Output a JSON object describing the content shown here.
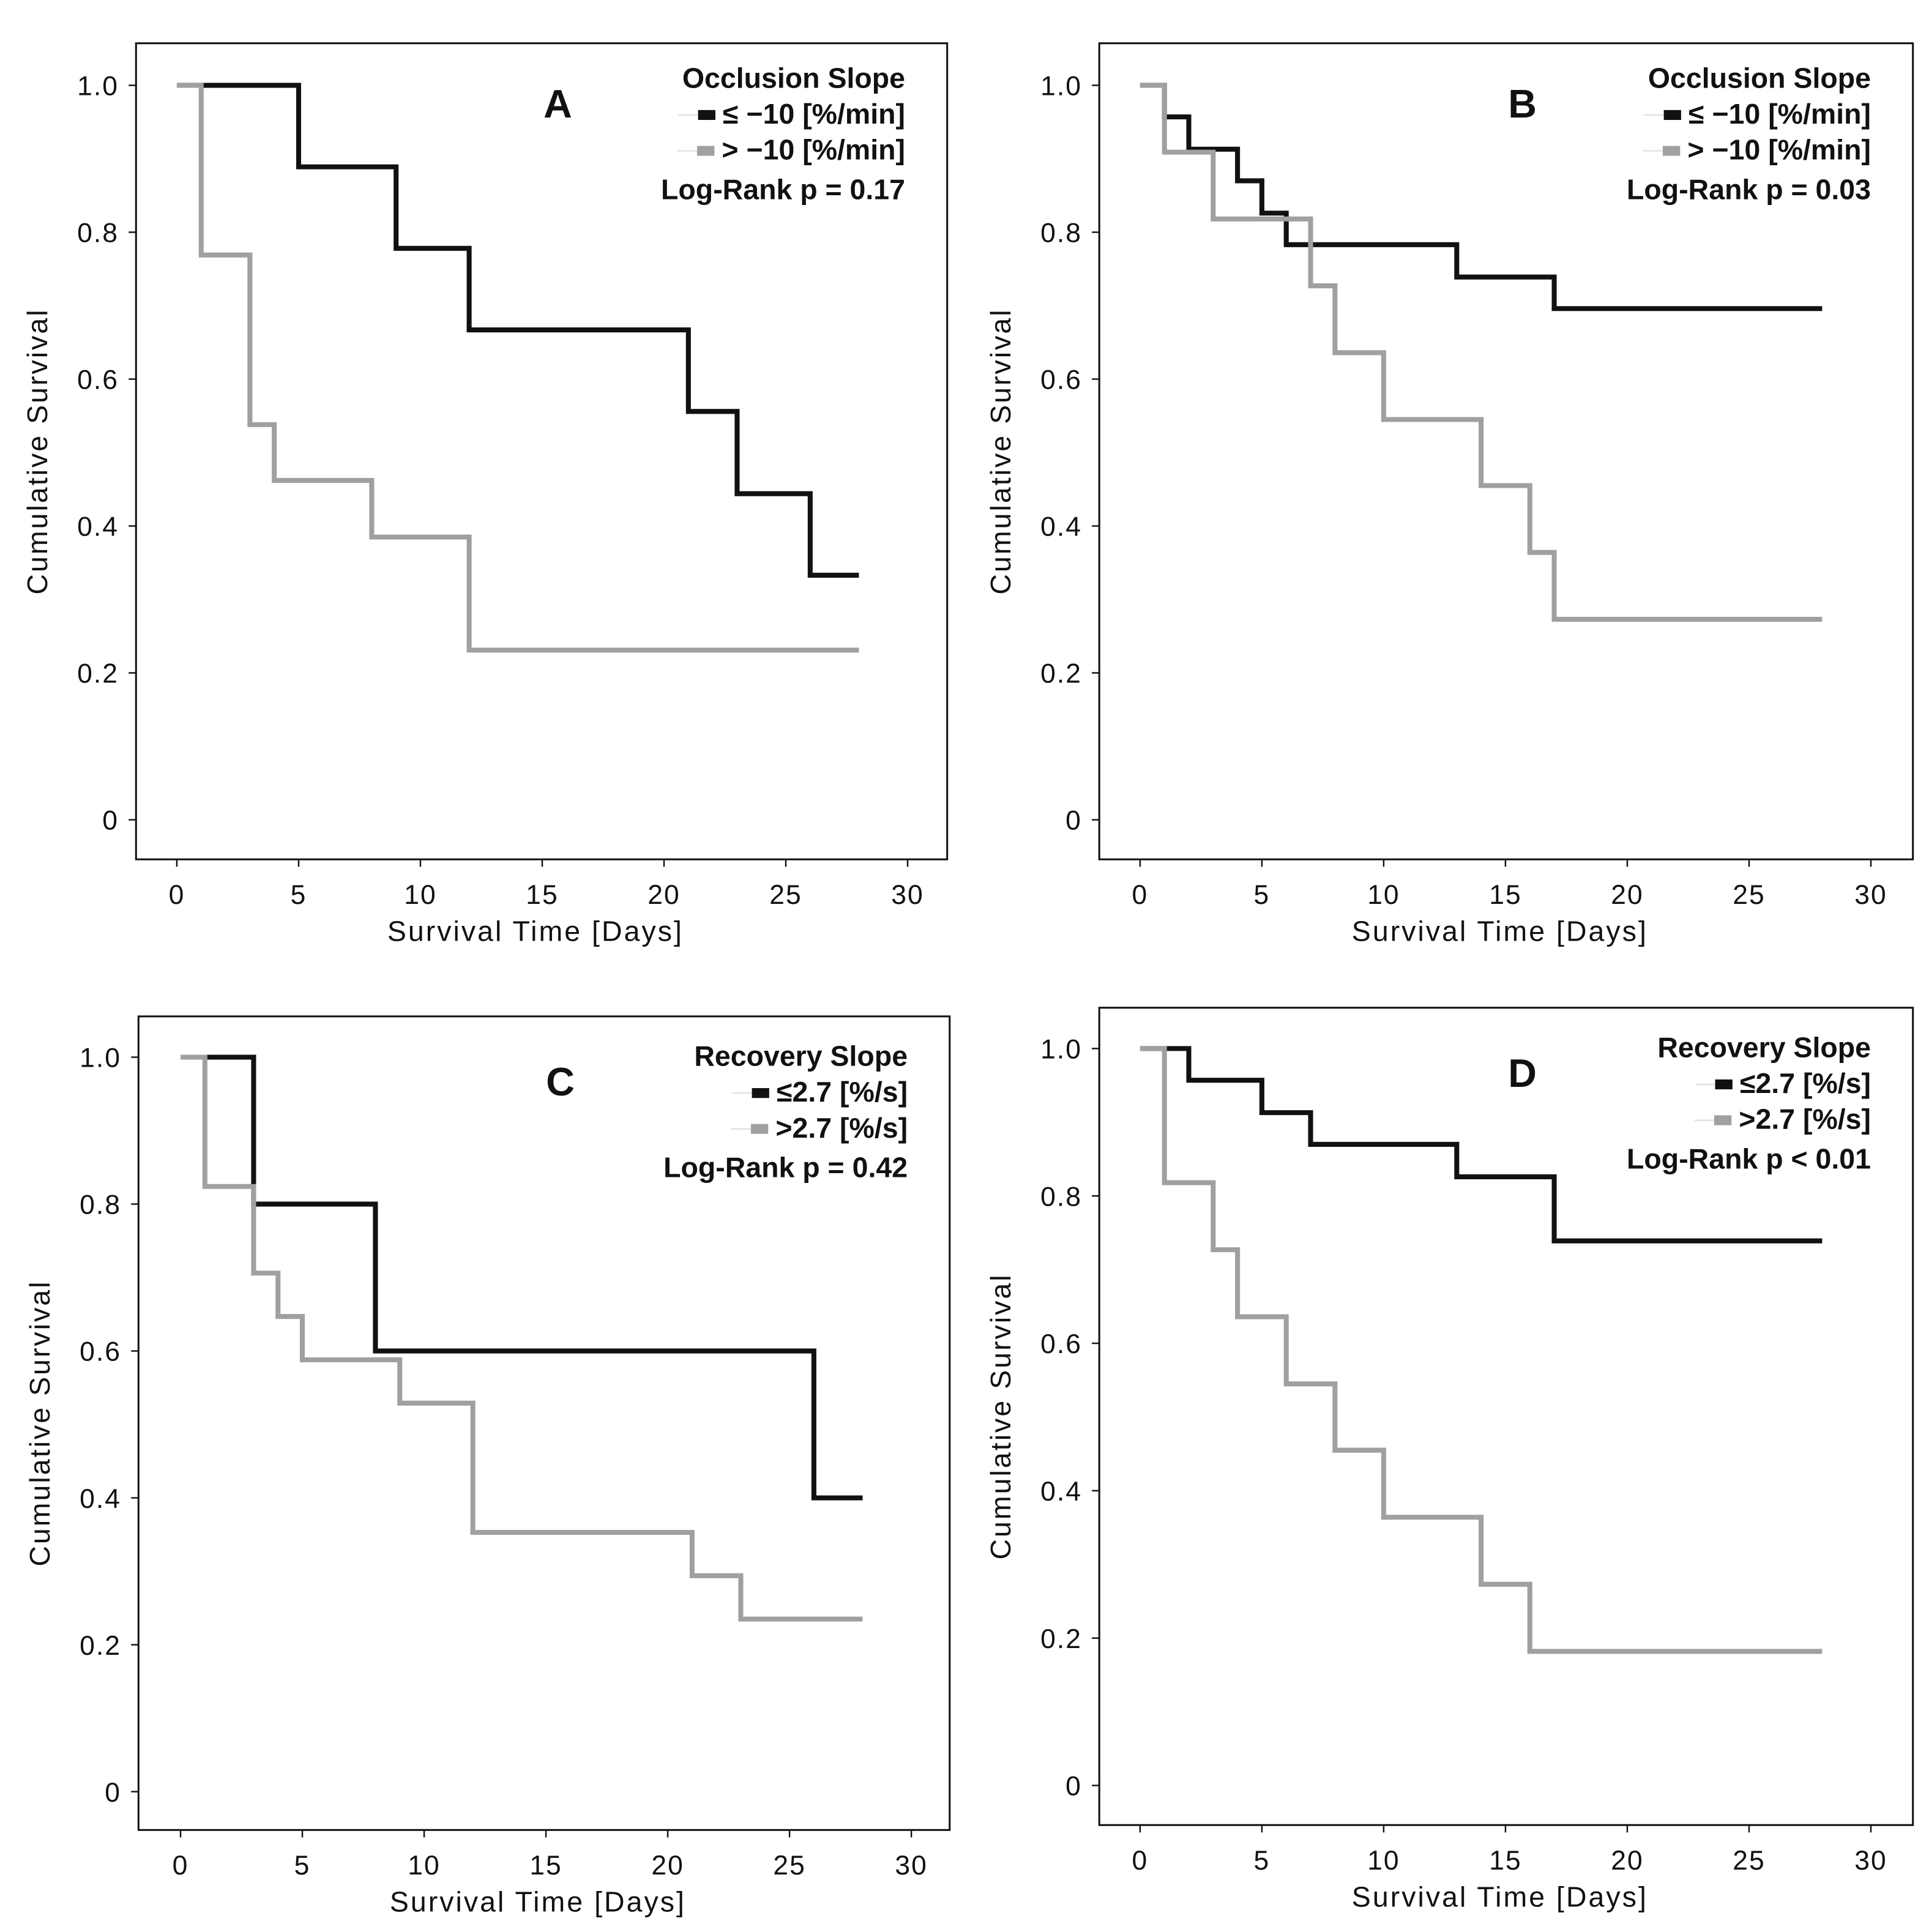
{
  "colors": {
    "black": "#111111",
    "gray": "#a0a0a0"
  },
  "chart_data": [
    {
      "type": "line",
      "panel": "A",
      "title": "Occlusion Slope",
      "annotation": "Log-Rank p = 0.17",
      "xlabel": "Survival Time [Days]",
      "ylabel": "Cumulative Survival",
      "xlim": [
        0,
        30
      ],
      "ylim": [
        0,
        1
      ],
      "xticks": [
        "0",
        "5",
        "10",
        "15",
        "20",
        "25",
        "30"
      ],
      "yticks": [
        "0",
        "0.2",
        "0.4",
        "0.6",
        "0.8",
        "1.0"
      ],
      "end": 28,
      "series": [
        {
          "name": "≤ −10 [%/min]",
          "color": "black",
          "steps": [
            [
              0,
              1.0
            ],
            [
              5,
              0.889
            ],
            [
              9,
              0.778
            ],
            [
              12,
              0.667
            ],
            [
              21,
              0.556
            ],
            [
              23,
              0.444
            ],
            [
              26,
              0.333
            ]
          ]
        },
        {
          "name": "> −10 [%/min]",
          "color": "gray",
          "steps": [
            [
              0,
              1.0
            ],
            [
              1,
              0.769
            ],
            [
              3,
              0.538
            ],
            [
              4,
              0.462
            ],
            [
              8,
              0.385
            ],
            [
              12,
              0.231
            ]
          ]
        }
      ]
    },
    {
      "type": "line",
      "panel": "B",
      "title": "Occlusion Slope",
      "annotation": "Log-Rank p = 0.03",
      "xlabel": "Survival Time [Days]",
      "ylabel": "Cumulative Survival",
      "xlim": [
        0,
        30
      ],
      "ylim": [
        0,
        1
      ],
      "xticks": [
        "0",
        "5",
        "10",
        "15",
        "20",
        "25",
        "30"
      ],
      "yticks": [
        "0",
        "0.2",
        "0.4",
        "0.6",
        "0.8",
        "1.0"
      ],
      "end": 28,
      "series": [
        {
          "name": "≤ −10 [%/min]",
          "color": "black",
          "steps": [
            [
              0,
              1.0
            ],
            [
              1,
              0.957
            ],
            [
              2,
              0.913
            ],
            [
              4,
              0.87
            ],
            [
              5,
              0.826
            ],
            [
              6,
              0.783
            ],
            [
              13,
              0.739
            ],
            [
              17,
              0.696
            ]
          ]
        },
        {
          "name": "> −10 [%/min]",
          "color": "gray",
          "steps": [
            [
              0,
              1.0
            ],
            [
              1,
              0.909
            ],
            [
              3,
              0.818
            ],
            [
              7,
              0.727
            ],
            [
              8,
              0.636
            ],
            [
              10,
              0.545
            ],
            [
              14,
              0.455
            ],
            [
              16,
              0.364
            ],
            [
              17,
              0.273
            ]
          ]
        }
      ]
    },
    {
      "type": "line",
      "panel": "C",
      "title": "Recovery Slope",
      "annotation": "Log-Rank p = 0.42",
      "xlabel": "Survival Time [Days]",
      "ylabel": "Cumulative Survival",
      "xlim": [
        0,
        30
      ],
      "ylim": [
        0,
        1
      ],
      "xticks": [
        "0",
        "5",
        "10",
        "15",
        "20",
        "25",
        "30"
      ],
      "yticks": [
        "0",
        "0.2",
        "0.4",
        "0.6",
        "0.8",
        "1.0"
      ],
      "end": 28,
      "series": [
        {
          "name": "≤2.7 [%/s]",
          "color": "black",
          "steps": [
            [
              0,
              1.0
            ],
            [
              3,
              0.8
            ],
            [
              8,
              0.6
            ],
            [
              26,
              0.4
            ]
          ]
        },
        {
          "name": ">2.7 [%/s]",
          "color": "gray",
          "steps": [
            [
              0,
              1.0
            ],
            [
              1,
              0.824
            ],
            [
              3,
              0.706
            ],
            [
              4,
              0.647
            ],
            [
              5,
              0.588
            ],
            [
              9,
              0.529
            ],
            [
              12,
              0.353
            ],
            [
              21,
              0.294
            ],
            [
              23,
              0.235
            ]
          ]
        }
      ]
    },
    {
      "type": "line",
      "panel": "D",
      "title": "Recovery Slope",
      "annotation": "Log-Rank p < 0.01",
      "xlabel": "Survival Time [Days]",
      "ylabel": "Cumulative Survival",
      "xlim": [
        0,
        30
      ],
      "ylim": [
        0,
        1
      ],
      "xticks": [
        "0",
        "5",
        "10",
        "15",
        "20",
        "25",
        "30"
      ],
      "yticks": [
        "0",
        "0.2",
        "0.4",
        "0.6",
        "0.8",
        "1.0"
      ],
      "end": 28,
      "series": [
        {
          "name": "≤2.7 [%/s]",
          "color": "black",
          "steps": [
            [
              0,
              1.0
            ],
            [
              2,
              0.957
            ],
            [
              5,
              0.913
            ],
            [
              7,
              0.87
            ],
            [
              13,
              0.826
            ],
            [
              17,
              0.739
            ]
          ]
        },
        {
          "name": ">2.7 [%/s]",
          "color": "gray",
          "steps": [
            [
              0,
              1.0
            ],
            [
              1,
              0.818
            ],
            [
              3,
              0.727
            ],
            [
              4,
              0.636
            ],
            [
              6,
              0.545
            ],
            [
              8,
              0.455
            ],
            [
              10,
              0.364
            ],
            [
              14,
              0.273
            ],
            [
              16,
              0.182
            ]
          ]
        }
      ]
    }
  ]
}
